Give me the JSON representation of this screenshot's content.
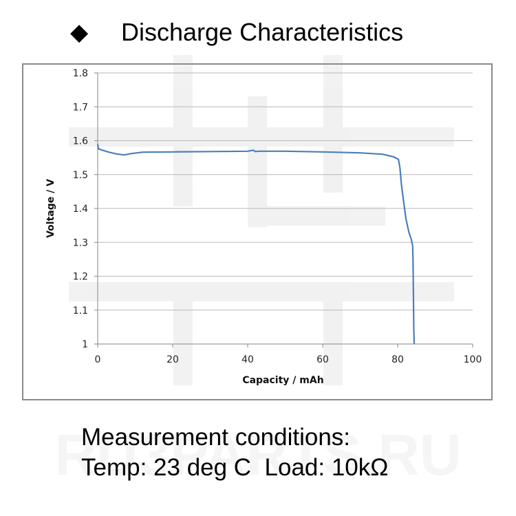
{
  "header": {
    "bullet_icon": "black-diamond-icon",
    "title": "Discharge Characteristics"
  },
  "chart_data": {
    "type": "line",
    "title": "",
    "xlabel": "Capacity  /  mAh",
    "ylabel": "Voltage  /  V",
    "xlim": [
      0,
      100
    ],
    "ylim": [
      1.0,
      1.8
    ],
    "x_ticks": [
      "0",
      "20",
      "40",
      "60",
      "80",
      "100"
    ],
    "y_ticks": [
      "1",
      "1.1",
      "1.2",
      "1.3",
      "1.4",
      "1.5",
      "1.6",
      "1.7",
      "1.8"
    ],
    "grid": "horizontal",
    "line_color": "#4a7ebb",
    "series": [
      {
        "x": [
          0,
          0.2,
          1,
          3,
          5,
          7,
          9,
          12,
          20,
          30,
          40,
          41.5,
          42,
          43,
          50,
          60,
          70,
          76,
          79,
          80.2,
          80.6,
          81,
          81.6,
          82.2,
          83,
          83.6,
          84,
          84.1,
          84.2,
          84.3,
          84.4
        ],
        "y": [
          1.59,
          1.576,
          1.573,
          1.566,
          1.561,
          1.558,
          1.562,
          1.566,
          1.567,
          1.568,
          1.569,
          1.572,
          1.568,
          1.569,
          1.569,
          1.567,
          1.564,
          1.56,
          1.552,
          1.545,
          1.52,
          1.47,
          1.42,
          1.37,
          1.33,
          1.31,
          1.29,
          1.25,
          1.15,
          1.05,
          1.0
        ]
      }
    ]
  },
  "conditions": {
    "line1": "Measurement conditions:",
    "line2": "Temp: 23 deg C  Load: 10kΩ"
  },
  "watermark": {
    "text": "RU3PARTS.RU"
  }
}
